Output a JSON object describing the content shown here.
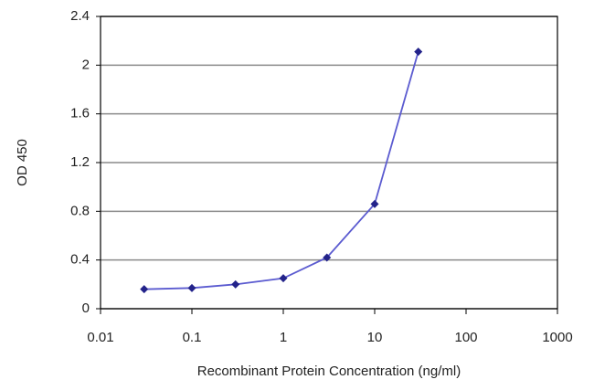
{
  "chart_data": {
    "type": "line",
    "x_label": "Recombinant Protein Concentration (ng/ml)",
    "y_label": "OD 450",
    "x": [
      0.03,
      0.1,
      0.3,
      1,
      3,
      10,
      30
    ],
    "values": [
      0.16,
      0.17,
      0.2,
      0.25,
      0.42,
      0.86,
      2.11
    ],
    "color": "#5b5bd0",
    "marker_color": "#23238a",
    "xscale": "log",
    "xlim": [
      0.01,
      1000
    ],
    "xticks": [
      0.01,
      0.1,
      1,
      10,
      100,
      1000
    ],
    "ylim": [
      0,
      2.4
    ],
    "yticks": [
      0,
      0.4,
      0.8,
      1.2,
      1.6,
      2,
      2.4
    ],
    "grid": true
  }
}
